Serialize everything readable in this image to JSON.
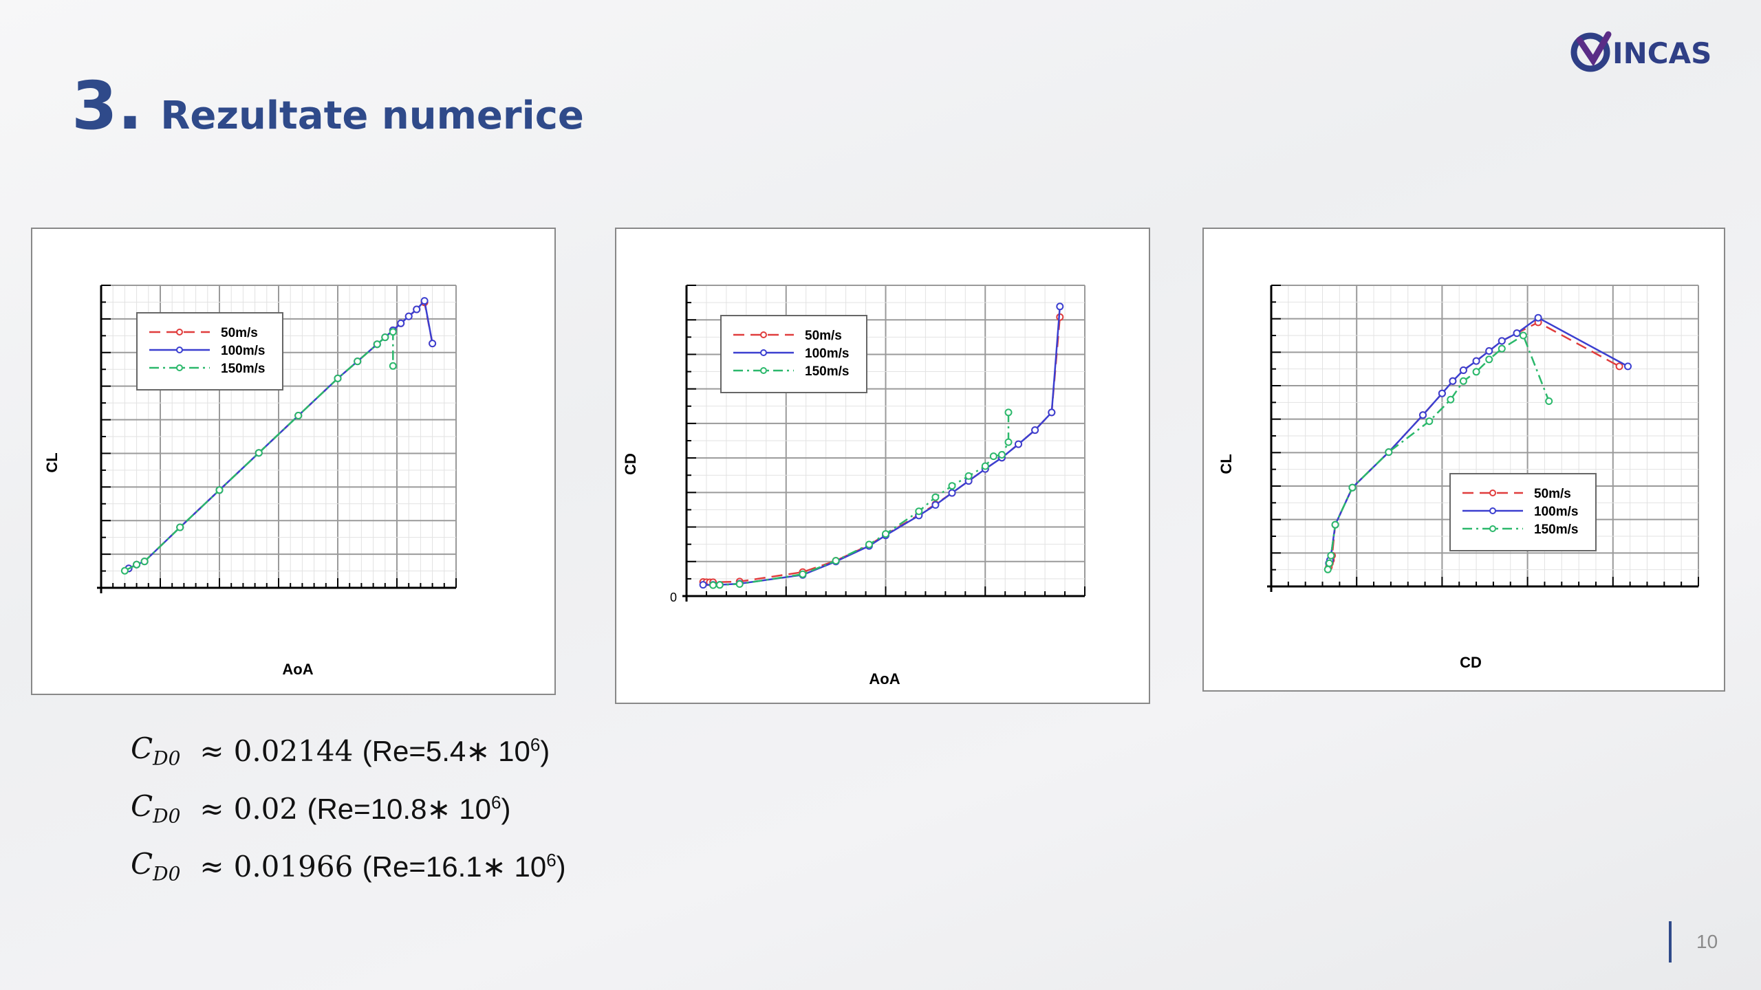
{
  "header": {
    "number": "3.",
    "title": "Rezultate numerice"
  },
  "logo": {
    "text": "INCAS",
    "color": "#2f3f86",
    "accent": "#5a2c86"
  },
  "colors": {
    "s50": "#e03c3c",
    "s100": "#3b3fd0",
    "s150": "#2bb86b",
    "title": "#2f4a8a"
  },
  "chart_data": [
    {
      "type": "line",
      "xlabel": "AoA",
      "ylabel": "CL",
      "legend_position": "top-left",
      "series": [
        {
          "name": "50m/s",
          "x": [
            -2.3,
            -2.1,
            -1.9,
            -1.0,
            0,
            1.0,
            2.0,
            3.0,
            3.5,
            4.0,
            4.2,
            4.4,
            4.6,
            4.8,
            5.0,
            5.2,
            5.4
          ],
          "y": [
            -0.05,
            0.0,
            0.04,
            0.48,
            0.96,
            1.44,
            1.92,
            2.4,
            2.62,
            2.84,
            2.93,
            3.02,
            3.11,
            3.2,
            3.29,
            3.38,
            2.85
          ]
        },
        {
          "name": "100m/s",
          "x": [
            -2.3,
            -2.1,
            -1.9,
            -1.0,
            0,
            1.0,
            2.0,
            3.0,
            3.5,
            4.0,
            4.2,
            4.4,
            4.6,
            4.8,
            5.0,
            5.2,
            5.4
          ],
          "y": [
            -0.05,
            0.0,
            0.04,
            0.48,
            0.96,
            1.44,
            1.92,
            2.4,
            2.62,
            2.84,
            2.93,
            3.02,
            3.11,
            3.2,
            3.29,
            3.4,
            2.85
          ]
        },
        {
          "name": "150m/s",
          "x": [
            -2.4,
            -2.1,
            -1.9,
            -1.0,
            0,
            1.0,
            2.0,
            3.0,
            3.5,
            4.0,
            4.2,
            4.4,
            4.4
          ],
          "y": [
            -0.08,
            0.0,
            0.04,
            0.48,
            0.96,
            1.44,
            1.92,
            2.4,
            2.62,
            2.84,
            2.93,
            3.0,
            2.56
          ]
        }
      ]
    },
    {
      "type": "line",
      "xlabel": "AoA",
      "ylabel": "CD",
      "y_tick_zero": "0",
      "legend_position": "top-left",
      "series": [
        {
          "name": "50m/s",
          "x": [
            -5.0,
            -4.8,
            -4.6,
            -4.4,
            -2.8,
            1.0,
            3.0,
            5.0,
            6.0,
            8.0,
            9.0,
            10.0,
            11.0,
            12.0,
            13.0,
            14.0,
            15.0,
            16.0,
            16.5
          ],
          "y": [
            0.02,
            0.0196,
            0.0195,
            0.0196,
            0.0205,
            0.034,
            0.05,
            0.072,
            0.087,
            0.115,
            0.13,
            0.146,
            0.163,
            0.18,
            0.196,
            0.215,
            0.235,
            0.26,
            0.395
          ]
        },
        {
          "name": "100m/s",
          "x": [
            -5.0,
            -4.4,
            -4.0,
            -2.8,
            1.0,
            3.0,
            5.0,
            6.0,
            8.0,
            9.0,
            10.0,
            11.0,
            12.0,
            13.0,
            14.0,
            15.0,
            16.0,
            16.5
          ],
          "y": [
            0.016,
            0.016,
            0.016,
            0.0175,
            0.03,
            0.049,
            0.071,
            0.086,
            0.114,
            0.129,
            0.146,
            0.163,
            0.18,
            0.196,
            0.215,
            0.235,
            0.26,
            0.41
          ]
        },
        {
          "name": "150m/s",
          "x": [
            -4.4,
            -4.0,
            -2.8,
            1.0,
            3.0,
            5.0,
            6.0,
            8.0,
            9.0,
            10.0,
            11.0,
            12.0,
            12.5,
            13.0,
            13.4,
            13.4
          ],
          "y": [
            0.0155,
            0.0158,
            0.017,
            0.031,
            0.05,
            0.073,
            0.088,
            0.12,
            0.14,
            0.156,
            0.17,
            0.184,
            0.198,
            0.2,
            0.218,
            0.26
          ]
        }
      ]
    },
    {
      "type": "line",
      "xlabel": "CD",
      "ylabel": "CL",
      "legend_position": "right",
      "series": [
        {
          "name": "50m/s",
          "x": [
            0.027,
            0.0275,
            0.028,
            0.0285,
            0.03,
            0.038,
            0.055,
            0.071,
            0.08,
            0.085,
            0.09,
            0.096,
            0.102,
            0.108,
            0.115,
            0.125,
            0.163
          ],
          "y": [
            -0.05,
            0.0,
            0.04,
            0.1,
            0.5,
            0.98,
            1.44,
            1.92,
            2.2,
            2.36,
            2.5,
            2.62,
            2.75,
            2.88,
            2.98,
            3.12,
            2.55
          ]
        },
        {
          "name": "100m/s",
          "x": [
            0.027,
            0.0275,
            0.028,
            0.03,
            0.038,
            0.055,
            0.071,
            0.08,
            0.085,
            0.09,
            0.096,
            0.102,
            0.108,
            0.115,
            0.125,
            0.167
          ],
          "y": [
            0.0,
            0.04,
            0.1,
            0.5,
            0.98,
            1.44,
            1.92,
            2.2,
            2.36,
            2.5,
            2.62,
            2.75,
            2.88,
            2.98,
            3.18,
            2.55
          ]
        },
        {
          "name": "150m/s",
          "x": [
            0.0265,
            0.0272,
            0.028,
            0.03,
            0.038,
            0.055,
            0.074,
            0.084,
            0.09,
            0.096,
            0.102,
            0.108,
            0.118,
            0.13
          ],
          "y": [
            -0.08,
            0.0,
            0.1,
            0.5,
            0.98,
            1.44,
            1.84,
            2.12,
            2.36,
            2.48,
            2.64,
            2.78,
            2.95,
            2.1
          ]
        }
      ]
    }
  ],
  "formulas": [
    {
      "symbol": "C",
      "sub": "D0",
      "approx": "≈",
      "value": "0.02144",
      "re_prefix": "(Re=5.4∗ 10",
      "re_exp": "6",
      "re_suffix": ")"
    },
    {
      "symbol": "C",
      "sub": "D0",
      "approx": "≈",
      "value": "0.02",
      "re_prefix": "(Re=10.8∗ 10",
      "re_exp": "6",
      "re_suffix": ")"
    },
    {
      "symbol": "C",
      "sub": "D0",
      "approx": "≈",
      "value": "0.01966",
      "re_prefix": "(Re=16.1∗ 10",
      "re_exp": "6",
      "re_suffix": ")"
    }
  ],
  "footer": {
    "page_number": "10"
  }
}
